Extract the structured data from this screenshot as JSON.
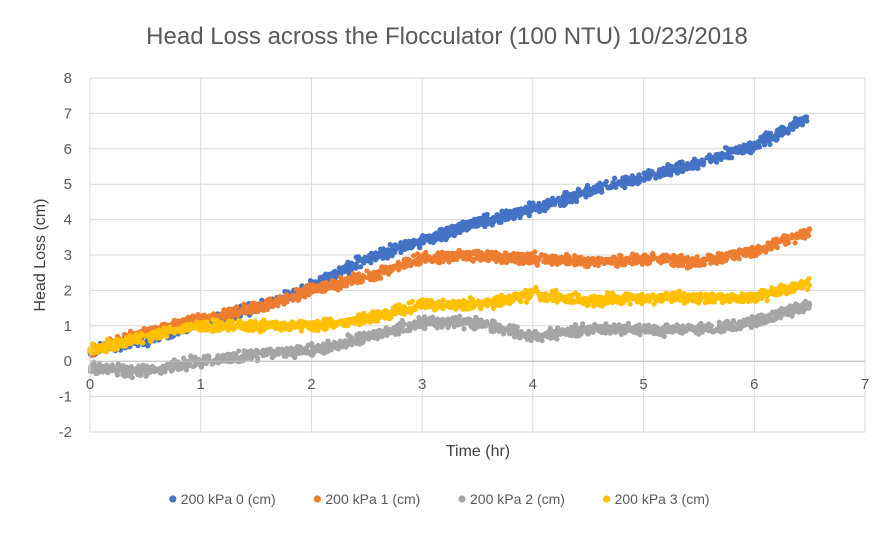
{
  "chart_data": {
    "type": "scatter",
    "title": "Head Loss across the Flocculator (100 NTU) 10/23/2018",
    "xlabel": "Time (hr)",
    "ylabel": "Head Loss (cm)",
    "xlim": [
      0,
      7
    ],
    "ylim": [
      -2,
      8
    ],
    "xticks": [
      "0",
      "1",
      "2",
      "3",
      "4",
      "5",
      "6",
      "7"
    ],
    "yticks": [
      "-2",
      "-1",
      "0",
      "1",
      "2",
      "3",
      "4",
      "5",
      "6",
      "7",
      "8"
    ],
    "grid": true,
    "legend_position": "bottom",
    "series": [
      {
        "name": "200 kPa 0 (cm)",
        "color": "#4472C4",
        "x": [
          0,
          0.5,
          1.0,
          1.5,
          2.0,
          2.5,
          3.0,
          3.5,
          4.0,
          4.5,
          5.0,
          5.5,
          6.0,
          6.5
        ],
        "y": [
          0.3,
          0.6,
          1.1,
          1.5,
          2.1,
          2.9,
          3.4,
          3.9,
          4.3,
          4.8,
          5.2,
          5.6,
          6.1,
          6.9
        ]
      },
      {
        "name": "200 kPa 1 (cm)",
        "color": "#ED7D31",
        "x": [
          0,
          0.5,
          1.0,
          1.5,
          2.0,
          2.5,
          3.0,
          3.5,
          4.0,
          4.5,
          5.0,
          5.5,
          6.0,
          6.5
        ],
        "y": [
          0.3,
          0.8,
          1.2,
          1.5,
          2.0,
          2.4,
          2.9,
          3.0,
          2.9,
          2.8,
          2.9,
          2.8,
          3.1,
          3.7
        ]
      },
      {
        "name": "200 kPa 2 (cm)",
        "color": "#A5A5A5",
        "x": [
          0,
          0.5,
          1.0,
          1.5,
          2.0,
          2.5,
          3.0,
          3.5,
          4.0,
          4.5,
          5.0,
          5.5,
          6.0,
          6.5
        ],
        "y": [
          -0.2,
          -0.3,
          0.0,
          0.2,
          0.3,
          0.7,
          1.1,
          1.1,
          0.7,
          0.9,
          0.9,
          0.9,
          1.1,
          1.6
        ]
      },
      {
        "name": "200 kPa 3 (cm)",
        "color": "#FFC000",
        "x": [
          0,
          0.5,
          1.0,
          1.5,
          2.0,
          2.5,
          3.0,
          3.5,
          4.0,
          4.5,
          5.0,
          5.5,
          6.0,
          6.5
        ],
        "y": [
          0.3,
          0.7,
          1.0,
          1.0,
          1.0,
          1.2,
          1.6,
          1.6,
          1.9,
          1.7,
          1.8,
          1.8,
          1.8,
          2.2
        ]
      }
    ]
  }
}
